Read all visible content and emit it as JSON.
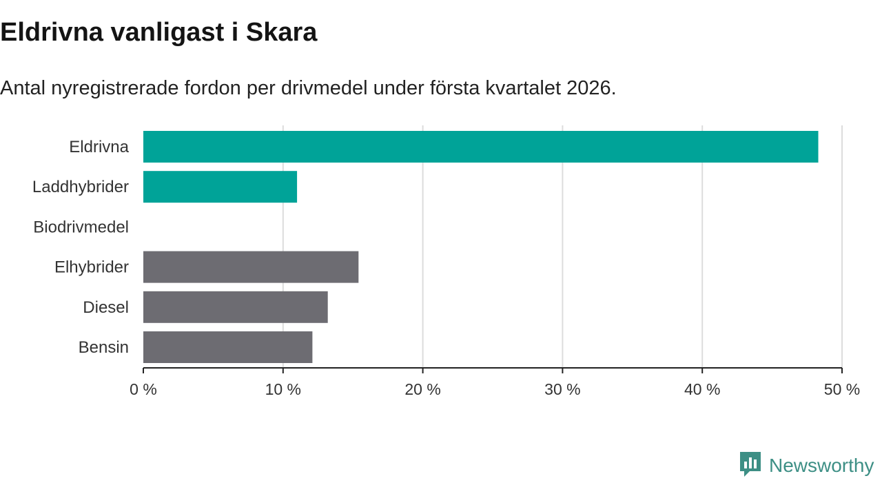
{
  "header": {
    "title": "Eldrivna vanligast i Skara",
    "subtitle": "Antal nyregistrerade fordon per drivmedel under första kvartalet 2026."
  },
  "brand": {
    "name": "Newsworthy",
    "icon": "bar-chart-logo-icon",
    "color": "#3d8f85"
  },
  "chart_data": {
    "type": "bar",
    "orientation": "horizontal",
    "title": "Eldrivna vanligast i Skara",
    "subtitle": "Antal nyregistrerade fordon per drivmedel under första kvartalet 2026.",
    "categories": [
      "Eldrivna",
      "Laddhybrider",
      "Biodrivmedel",
      "Elhybrider",
      "Diesel",
      "Bensin"
    ],
    "values": [
      48.3,
      11.0,
      0,
      15.4,
      13.2,
      12.1
    ],
    "colors": [
      "#00a398",
      "#00a398",
      "#00a398",
      "#6d6c72",
      "#6d6c72",
      "#6d6c72"
    ],
    "unit": "%",
    "xlim": [
      0,
      50
    ],
    "xticks": [
      0,
      10,
      20,
      30,
      40,
      50
    ],
    "xtick_labels": [
      "0 %",
      "10 %",
      "20 %",
      "30 %",
      "40 %",
      "50 %"
    ],
    "xlabel": "",
    "ylabel": "",
    "grid": true,
    "legend": "none"
  }
}
